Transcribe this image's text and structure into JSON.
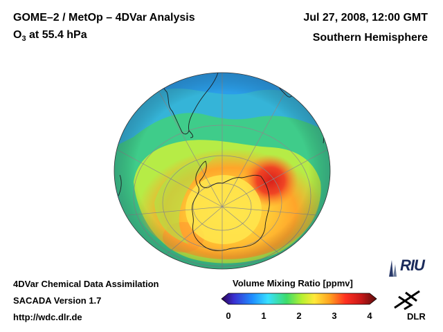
{
  "header": {
    "title_line1": "GOME–2 / MetOp – 4DVar Analysis",
    "species_prefix": "O",
    "species_subscript": "3",
    "species_suffix": " at 55.4 hPa",
    "datetime": "Jul 27, 2008, 12:00 GMT",
    "region": "Southern Hemisphere"
  },
  "info": {
    "line1": "4DVar Chemical Data Assimilation",
    "line2": "SACADA Version 1.7",
    "line3": "http://wdc.dlr.de"
  },
  "colorbar": {
    "title": "Volume Mixing Ratio [ppmv]",
    "ticks": [
      "0",
      "1",
      "2",
      "3",
      "4"
    ],
    "tick_values": [
      0,
      1,
      2,
      3,
      4
    ],
    "range": [
      0,
      4
    ],
    "colors": [
      "#2a0050",
      "#3a2fd0",
      "#1f8fff",
      "#38e0ff",
      "#3ddc6a",
      "#b8f030",
      "#ffe83a",
      "#ffa020",
      "#ff3020",
      "#c81818",
      "#5a0d0d"
    ]
  },
  "logos": {
    "riu": "RIU",
    "dlr": "DLR"
  },
  "map": {
    "projection": "orthographic, south polar",
    "field": "ozone volume mixing ratio",
    "palette": {
      "background_mid": "#3fcf8c",
      "outer_low": "#2fa8e8",
      "ring_high": "#ffb030",
      "max_red": "#e83020",
      "vortex_core": "#ffe850",
      "coastline": "#1b1b1b",
      "graticule": "#8a8a8a"
    }
  }
}
